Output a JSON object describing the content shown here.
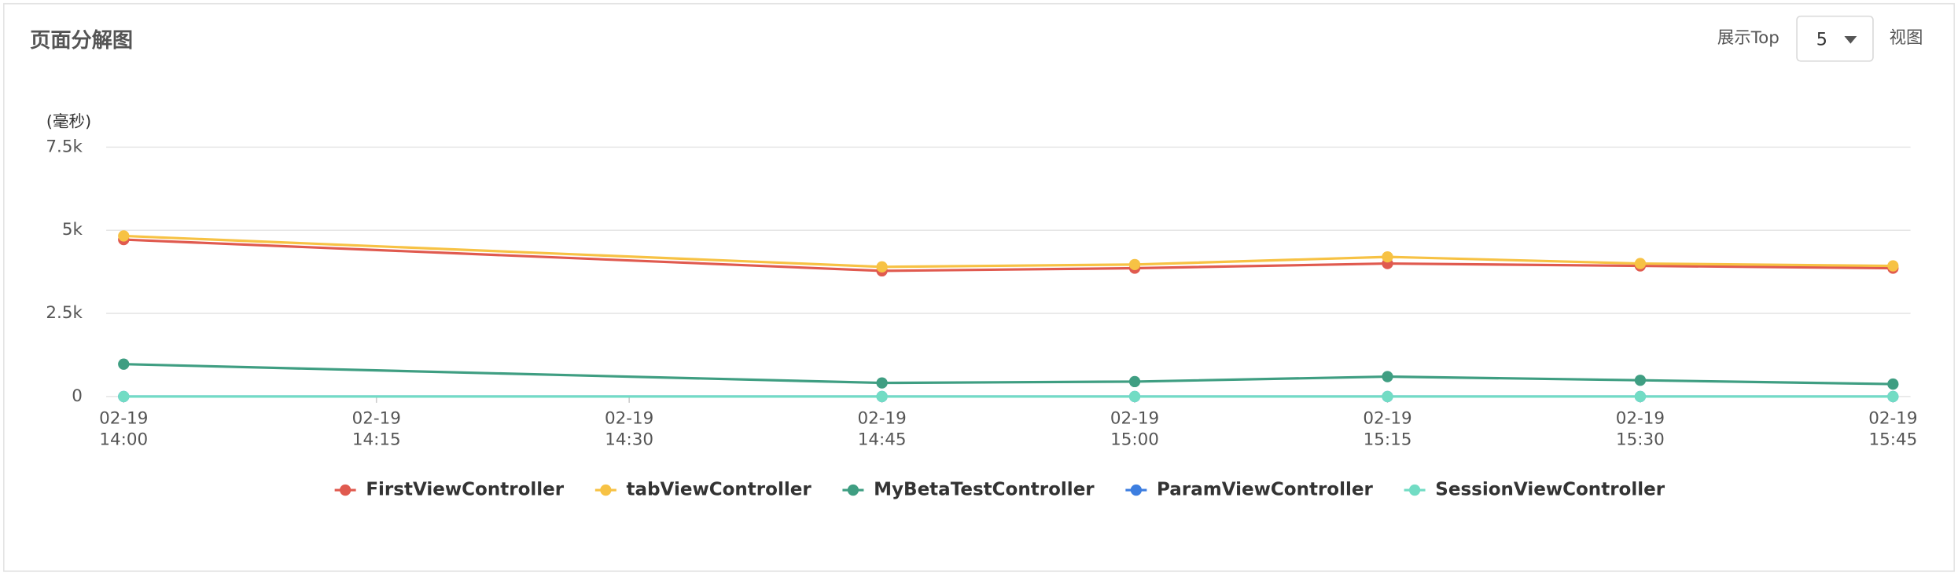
{
  "header": {
    "title": "页面分解图",
    "top_label": "展示Top",
    "top_value": "5",
    "view_label": "视图"
  },
  "chart_data": {
    "type": "line",
    "y_unit": "(毫秒)",
    "x": [
      "02-19 14:00",
      "02-19 14:45",
      "02-19 15:00",
      "02-19 15:15",
      "02-19 15:30",
      "02-19 15:45"
    ],
    "xlim": [
      "02-19 14:00",
      "02-19 15:45"
    ],
    "xticks": [
      "02-19 14:00",
      "02-19 14:15",
      "02-19 14:30",
      "02-19 14:45",
      "02-19 15:00",
      "02-19 15:15",
      "02-19 15:30",
      "02-19 15:45"
    ],
    "ylim": [
      0,
      7500
    ],
    "yticks": [
      0,
      {
        "value": 2500,
        "label": "2.5k"
      },
      {
        "value": 5000,
        "label": "5k"
      },
      {
        "value": 7500,
        "label": "7.5k"
      }
    ],
    "grid": true,
    "series": [
      {
        "name": "FirstViewController",
        "color": "#e05a4f",
        "values": [
          4720,
          3780,
          3860,
          4000,
          3930,
          3860
        ]
      },
      {
        "name": "tabViewController",
        "color": "#f7c244",
        "values": [
          4830,
          3900,
          3970,
          4200,
          4000,
          3930
        ]
      },
      {
        "name": "MyBetaTestController",
        "color": "#3f9e82",
        "values": [
          975,
          410,
          450,
          600,
          490,
          375
        ]
      },
      {
        "name": "ParamViewController",
        "color": "#3d7ee0",
        "values": [
          0,
          0,
          0,
          0,
          0,
          0
        ]
      },
      {
        "name": "SessionViewController",
        "color": "#72dcc4",
        "values": [
          0,
          0,
          0,
          0,
          0,
          0
        ]
      }
    ]
  }
}
